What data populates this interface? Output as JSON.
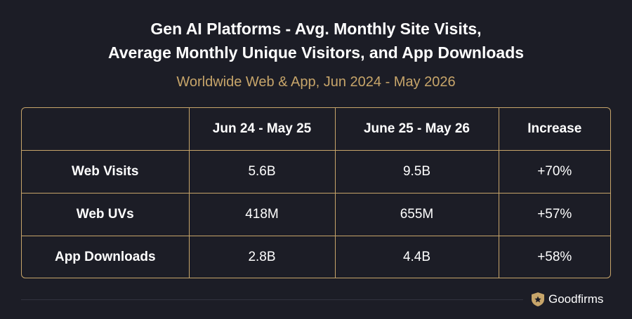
{
  "chart_data": {
    "type": "table",
    "title": [
      "Gen AI Platforms - Avg. Monthly Site Visits,",
      "Average Monthly Unique Visitors, and App Downloads"
    ],
    "subtitle": "Worldwide Web & App, Jun 2024 - May 2026",
    "columns": [
      "",
      "Jun 24 - May 25",
      "June 25 - May 26",
      "Increase"
    ],
    "rows": [
      {
        "label": "Web Visits",
        "values": [
          "5.6B",
          "9.5B",
          "+70%"
        ]
      },
      {
        "label": "Web UVs",
        "values": [
          "418M",
          "655M",
          "+57%"
        ]
      },
      {
        "label": "App Downloads",
        "values": [
          "2.8B",
          "4.4B",
          "+58%"
        ]
      }
    ]
  },
  "footer": {
    "brand": "Goodfirms",
    "brand_icon": "goodfirms-shield-star-icon"
  },
  "colors": {
    "background": "#1c1d26",
    "accent": "#c7a56a",
    "text": "#ffffff"
  }
}
